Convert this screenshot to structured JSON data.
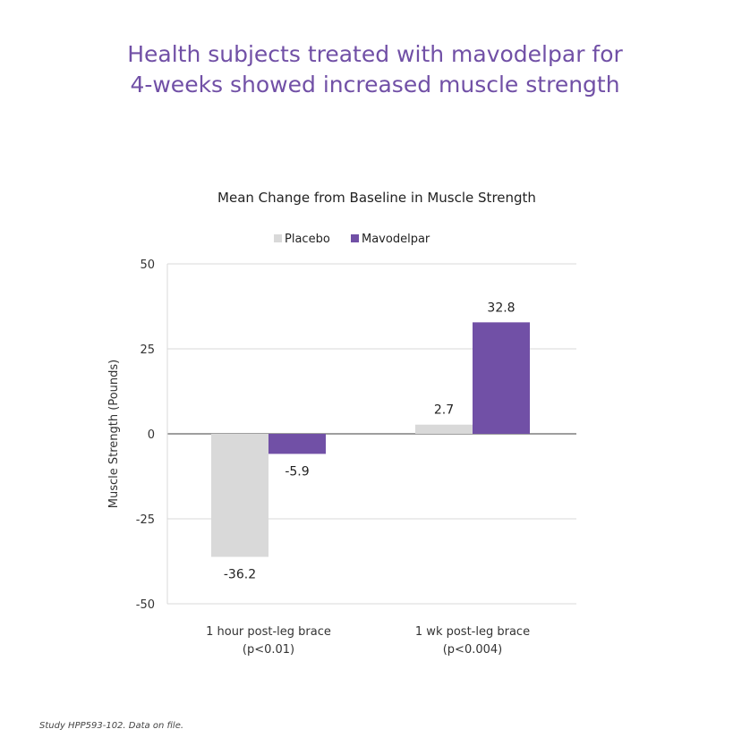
{
  "headline": {
    "line1": "Health subjects treated with mavodelpar for",
    "line2": "4-weeks showed increased muscle strength"
  },
  "chart_data": {
    "type": "bar",
    "title": "Mean Change from Baseline in Muscle Strength",
    "xlabel": "",
    "ylabel": "Muscle Strength (Pounds)",
    "ylim": [
      -50,
      50
    ],
    "yticks": [
      50,
      25,
      0,
      -25,
      -50
    ],
    "grid": true,
    "legend_position": "top-center",
    "categories": [
      [
        "1 hour post-leg brace",
        "(p<0.01)"
      ],
      [
        "1 wk post-leg brace",
        "(p<0.004)"
      ]
    ],
    "series": [
      {
        "name": "Placebo",
        "color": "#d9d9d9",
        "values": [
          -36.2,
          2.7
        ],
        "labels": [
          "-36.2",
          "2.7"
        ]
      },
      {
        "name": "Mavodelpar",
        "color": "#7150a6",
        "values": [
          -5.9,
          32.8
        ],
        "labels": [
          "-5.9",
          "32.8"
        ]
      }
    ]
  },
  "footnote": "Study HPP593-102. Data on file.",
  "colors": {
    "accent": "#7150a6",
    "placebo": "#d9d9d9",
    "gridline": "#d9d9d9",
    "axis_text": "#333333"
  }
}
